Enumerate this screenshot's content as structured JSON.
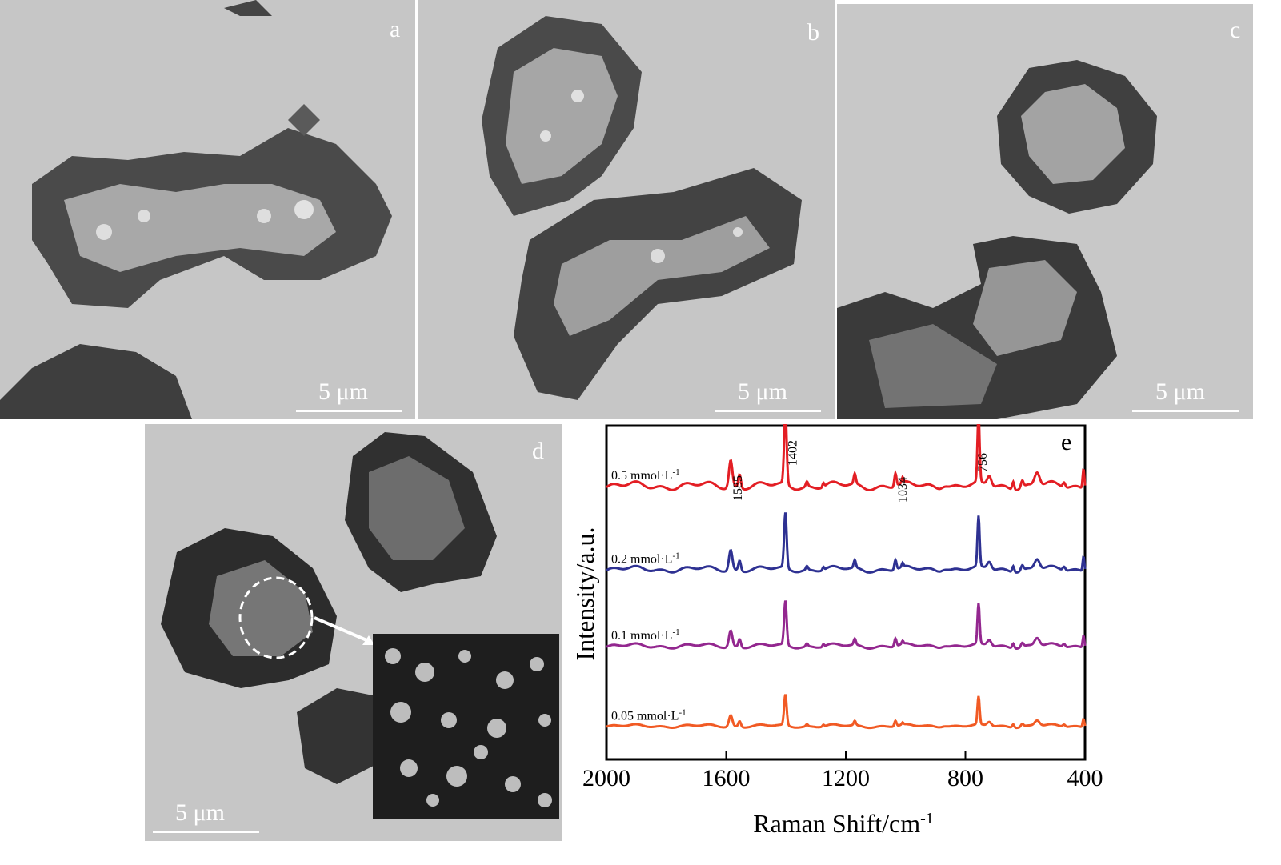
{
  "panels": {
    "a": {
      "label": "a",
      "scale": "5 μm"
    },
    "b": {
      "label": "b",
      "scale": "5 μm"
    },
    "c": {
      "label": "c",
      "scale": "5 μm"
    },
    "d": {
      "label": "d",
      "scale": "5 μm"
    }
  },
  "chart_data": {
    "type": "line",
    "panel_label": "e",
    "xlabel": "Raman Shift/cm",
    "xlabel_sup": "-1",
    "ylabel": "Intensity/a.u.",
    "xlim": [
      2000,
      400
    ],
    "x_reversed": true,
    "xticks": [
      2000,
      1600,
      1200,
      800,
      400
    ],
    "peak_annotations": [
      "1585",
      "1402",
      "1034",
      "756"
    ],
    "peaks_x": [
      1585,
      1402,
      1034,
      756
    ],
    "series": [
      {
        "name": "0.5 mmol·L",
        "sup": "-1",
        "color": "#e31e24",
        "baseline": 0.82,
        "scale": 1.0
      },
      {
        "name": "0.2 mmol·L",
        "sup": "-1",
        "color": "#2e3192",
        "baseline": 0.57,
        "scale": 0.75
      },
      {
        "name": "0.1 mmol·L",
        "sup": "-1",
        "color": "#93278f",
        "baseline": 0.34,
        "scale": 0.6
      },
      {
        "name": "0.05 mmol·L",
        "sup": "-1",
        "color": "#f15a24",
        "baseline": 0.1,
        "scale": 0.42
      }
    ]
  }
}
